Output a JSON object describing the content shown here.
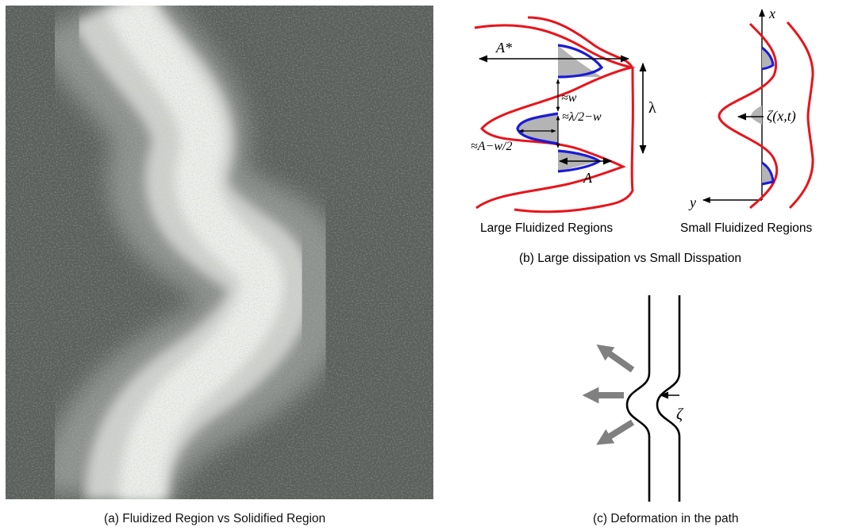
{
  "panel_a": {
    "caption": "(a) Fluidized Region vs Solidified Region"
  },
  "panel_b": {
    "caption": "(b) Large dissipation vs Small Disspation",
    "left_title": "Large Fluidized Regions",
    "right_title": "Small Fluidized Regions",
    "labels": {
      "a_star": "A*",
      "w": "≈w",
      "half_lambda": "≈λ/2−w",
      "a_minus": "≈A−w/2",
      "a": "A",
      "lambda": "λ",
      "x_axis": "x",
      "y_axis": "y",
      "zeta_xt": "ζ(x,t)"
    }
  },
  "panel_c": {
    "caption": "(c) Deformation in the path",
    "zeta": "ζ"
  },
  "colors": {
    "red_curve": "#e8141c",
    "blue_curve": "#1b1bd8",
    "shade": "#b4b4b4",
    "arrow_gray": "#808080"
  }
}
